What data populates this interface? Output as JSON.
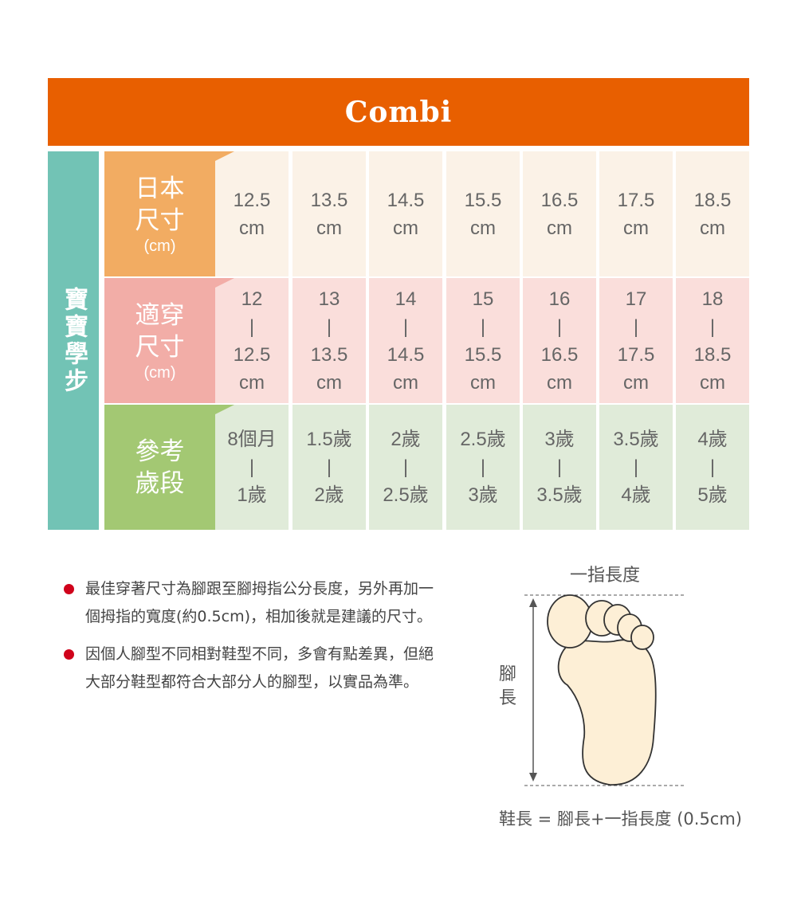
{
  "brand": {
    "logo": "Combi",
    "color": "#E85F00"
  },
  "side_label": "寶寶學步",
  "rows": [
    {
      "label": [
        "日本",
        "尺寸"
      ],
      "unit": "(cm)",
      "label_color": "#F2AC62",
      "cell_color": "#FBF2E7",
      "cells": [
        [
          "12.5",
          "cm"
        ],
        [
          "13.5",
          "cm"
        ],
        [
          "14.5",
          "cm"
        ],
        [
          "15.5",
          "cm"
        ],
        [
          "16.5",
          "cm"
        ],
        [
          "17.5",
          "cm"
        ],
        [
          "18.5",
          "cm"
        ]
      ]
    },
    {
      "label": [
        "適穿",
        "尺寸"
      ],
      "unit": "(cm)",
      "label_color": "#F2ADA7",
      "cell_color": "#FADEDB",
      "cells": [
        [
          "12",
          "|",
          "12.5",
          "cm"
        ],
        [
          "13",
          "|",
          "13.5",
          "cm"
        ],
        [
          "14",
          "|",
          "14.5",
          "cm"
        ],
        [
          "15",
          "|",
          "15.5",
          "cm"
        ],
        [
          "16",
          "|",
          "16.5",
          "cm"
        ],
        [
          "17",
          "|",
          "17.5",
          "cm"
        ],
        [
          "18",
          "|",
          "18.5",
          "cm"
        ]
      ]
    },
    {
      "label": [
        "參考",
        "歲段"
      ],
      "unit": "",
      "label_color": "#A3C873",
      "cell_color": "#E0EBD9",
      "cells": [
        [
          "8個月",
          "|",
          "1歲"
        ],
        [
          "1.5歲",
          "|",
          "2歲"
        ],
        [
          "2歲",
          "|",
          "2.5歲"
        ],
        [
          "2.5歲",
          "|",
          "3歲"
        ],
        [
          "3歲",
          "|",
          "3.5歲"
        ],
        [
          "3.5歲",
          "|",
          "4歲"
        ],
        [
          "4歲",
          "|",
          "5歲"
        ]
      ]
    }
  ],
  "notes": [
    "最佳穿著尺寸為腳跟至腳拇指公分長度，另外再加一個拇指的寬度(約0.5cm)，相加後就是建議的尺寸。",
    "因個人腳型不同相對鞋型不同，多會有點差異，但絕大部分鞋型都符合大部分人的腳型，以實品為準。"
  ],
  "diagram": {
    "top_label": "一指長度",
    "side_label": "腳長",
    "formula": "鞋長 = 腳長+一指長度 (0.5cm)",
    "foot_color": "#FDEFD6"
  }
}
